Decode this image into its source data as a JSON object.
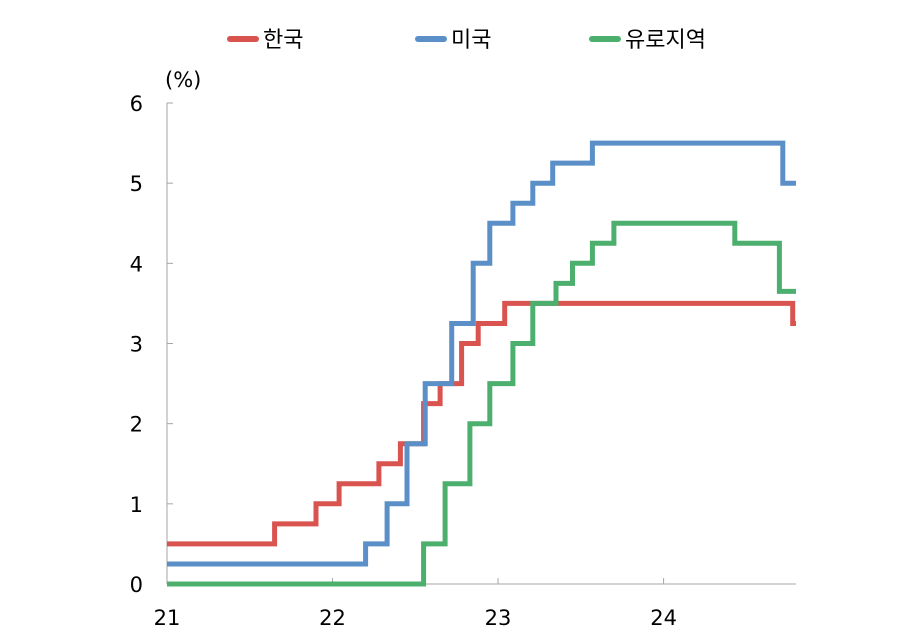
{
  "chart_data": {
    "type": "line",
    "step": true,
    "ylabel": "(%)",
    "xlim": [
      21,
      24.8
    ],
    "ylim": [
      0,
      6
    ],
    "yticks": [
      0,
      1,
      2,
      3,
      4,
      5,
      6
    ],
    "xticks": [
      21,
      22,
      23,
      24
    ],
    "xtick_labels": [
      "21",
      "22",
      "23",
      "24"
    ],
    "ytick_labels": [
      "0",
      "1",
      "2",
      "3",
      "4",
      "5",
      "6"
    ],
    "legend_position": "top",
    "grid": false,
    "series": [
      {
        "name": "한국",
        "color": "#d9534f",
        "points": [
          [
            21.0,
            0.5
          ],
          [
            21.65,
            0.75
          ],
          [
            21.9,
            1.0
          ],
          [
            22.04,
            1.25
          ],
          [
            22.28,
            1.5
          ],
          [
            22.41,
            1.75
          ],
          [
            22.55,
            2.25
          ],
          [
            22.65,
            2.5
          ],
          [
            22.78,
            3.0
          ],
          [
            22.88,
            3.25
          ],
          [
            23.04,
            3.5
          ],
          [
            24.78,
            3.25
          ]
        ]
      },
      {
        "name": "미국",
        "color": "#5b8fc7",
        "points": [
          [
            21.0,
            0.25
          ],
          [
            22.2,
            0.5
          ],
          [
            22.33,
            1.0
          ],
          [
            22.45,
            1.75
          ],
          [
            22.56,
            2.5
          ],
          [
            22.72,
            3.25
          ],
          [
            22.85,
            4.0
          ],
          [
            22.95,
            4.5
          ],
          [
            23.09,
            4.75
          ],
          [
            23.21,
            5.0
          ],
          [
            23.33,
            5.25
          ],
          [
            23.57,
            5.5
          ],
          [
            24.72,
            5.0
          ]
        ]
      },
      {
        "name": "유로지역",
        "color": "#4caf6e",
        "points": [
          [
            21.0,
            0.0
          ],
          [
            22.55,
            0.5
          ],
          [
            22.68,
            1.25
          ],
          [
            22.83,
            2.0
          ],
          [
            22.95,
            2.5
          ],
          [
            23.09,
            3.0
          ],
          [
            23.21,
            3.5
          ],
          [
            23.35,
            3.75
          ],
          [
            23.45,
            4.0
          ],
          [
            23.57,
            4.25
          ],
          [
            23.7,
            4.5
          ],
          [
            24.43,
            4.25
          ],
          [
            24.7,
            3.65
          ]
        ]
      }
    ]
  }
}
